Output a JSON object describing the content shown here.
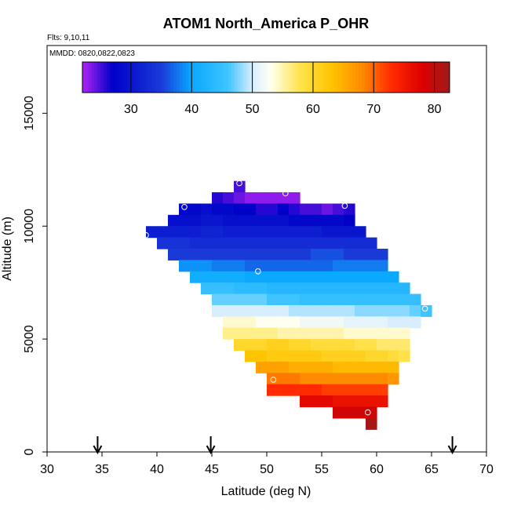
{
  "chart_data": {
    "type": "heatmap",
    "title": "ATOM1 North_America P_OHR",
    "flights_label": "Flts: 9,10,11",
    "dates_label": "MMDD: 0820,0822,0823",
    "xlabel": "Latitude (deg N)",
    "ylabel": "Altitude (m)",
    "xlim": [
      30,
      70
    ],
    "ylim": [
      0,
      18000
    ],
    "x_ticks": [
      30,
      35,
      40,
      45,
      50,
      55,
      60,
      65,
      70
    ],
    "y_ticks": [
      0,
      5000,
      10000,
      15000
    ],
    "colorbar": {
      "range": [
        22,
        82.5
      ],
      "ticks": [
        30,
        40,
        50,
        60,
        70,
        80
      ],
      "stops": [
        {
          "v": 22.5,
          "c": "#a020f0"
        },
        {
          "v": 27,
          "c": "#0000c8"
        },
        {
          "v": 35,
          "c": "#1a3ad8"
        },
        {
          "v": 40,
          "c": "#0aa8ff"
        },
        {
          "v": 46,
          "c": "#3fc4ff"
        },
        {
          "v": 50,
          "c": "#d8eeff"
        },
        {
          "v": 53,
          "c": "#fffff0"
        },
        {
          "v": 58,
          "c": "#ffe24a"
        },
        {
          "v": 63,
          "c": "#ffc400"
        },
        {
          "v": 68,
          "c": "#ff8c00"
        },
        {
          "v": 73,
          "c": "#ff2a00"
        },
        {
          "v": 78,
          "c": "#dd0000"
        },
        {
          "v": 82.5,
          "c": "#a01a1a"
        }
      ]
    },
    "bin_width_deg": 1,
    "bin_height_m": 500,
    "cells": [
      {
        "alt": 11750,
        "lat0": 47,
        "lat1": 48,
        "values": [
          25
        ]
      },
      {
        "alt": 11250,
        "lat0": 45,
        "lat1": 53,
        "values": [
          26,
          25,
          24,
          23,
          23,
          23,
          23,
          23
        ]
      },
      {
        "alt": 10750,
        "lat0": 42,
        "lat1": 58,
        "values": [
          28,
          28,
          29,
          28,
          28,
          27,
          27,
          26,
          26,
          27,
          26,
          25,
          25,
          24,
          25,
          26
        ]
      },
      {
        "alt": 10250,
        "lat0": 41,
        "lat1": 58,
        "values": [
          29,
          29,
          29,
          30,
          30,
          29,
          29,
          29,
          29,
          29,
          29,
          28,
          28,
          28,
          28,
          28,
          27
        ]
      },
      {
        "alt": 9750,
        "lat0": 39,
        "lat1": 59,
        "values": [
          31,
          31,
          31,
          31,
          31,
          32,
          32,
          31,
          31,
          31,
          31,
          31,
          31,
          31,
          31,
          31,
          30,
          30,
          30,
          30
        ]
      },
      {
        "alt": 9250,
        "lat0": 40,
        "lat1": 60,
        "values": [
          34,
          34,
          34,
          33,
          33,
          33,
          33,
          33,
          33,
          33,
          33,
          33,
          33,
          33,
          33,
          33,
          33,
          33,
          33,
          33
        ]
      },
      {
        "alt": 8750,
        "lat0": 41,
        "lat1": 61,
        "values": [
          35,
          35,
          35,
          35,
          35,
          35,
          35,
          35,
          35,
          35,
          35,
          35,
          35,
          36,
          36,
          36,
          35,
          35,
          35,
          35
        ]
      },
      {
        "alt": 8250,
        "lat0": 42,
        "lat1": 61,
        "values": [
          39,
          39,
          39,
          38,
          38,
          38,
          37,
          37,
          37,
          37,
          37,
          37,
          37,
          37,
          38,
          38,
          38,
          38,
          38
        ]
      },
      {
        "alt": 7750,
        "lat0": 43,
        "lat1": 62,
        "values": [
          41,
          41,
          41,
          41,
          41,
          40,
          40,
          40,
          40,
          40,
          40,
          40,
          40,
          40,
          40,
          40,
          40,
          40,
          40
        ]
      },
      {
        "alt": 7250,
        "lat0": 44,
        "lat1": 63,
        "values": [
          45,
          45,
          45,
          44,
          44,
          44,
          43,
          43,
          43,
          43,
          43,
          43,
          43,
          43,
          43,
          43,
          43,
          43,
          43
        ]
      },
      {
        "alt": 6750,
        "lat0": 45,
        "lat1": 64,
        "values": [
          47,
          47,
          47,
          47,
          47,
          46,
          46,
          46,
          45,
          45,
          45,
          45,
          45,
          45,
          45,
          45,
          45,
          45,
          45
        ]
      },
      {
        "alt": 6250,
        "lat0": 45,
        "lat1": 65,
        "values": [
          50,
          50,
          50,
          50,
          50,
          50,
          50,
          49,
          49,
          49,
          49,
          49,
          49,
          48,
          48,
          48,
          48,
          48,
          47,
          46
        ]
      },
      {
        "alt": 5750,
        "lat0": 46,
        "lat1": 64,
        "values": [
          54,
          54,
          54,
          53,
          53,
          53,
          53,
          52,
          52,
          52,
          52,
          51,
          51,
          51,
          51,
          50,
          50,
          50
        ]
      },
      {
        "alt": 5250,
        "lat0": 46,
        "lat1": 63,
        "values": [
          56,
          56,
          56,
          56,
          56,
          55,
          55,
          55,
          55,
          55,
          55,
          54,
          54,
          54,
          54,
          54,
          54
        ]
      },
      {
        "alt": 4750,
        "lat0": 47,
        "lat1": 63,
        "values": [
          60,
          60,
          60,
          61,
          61,
          60,
          60,
          59,
          59,
          59,
          59,
          58,
          58,
          57,
          57,
          57
        ]
      },
      {
        "alt": 4250,
        "lat0": 48,
        "lat1": 63,
        "values": [
          63,
          63,
          62,
          62,
          62,
          62,
          62,
          61,
          61,
          61,
          61,
          60,
          60,
          59,
          58
        ]
      },
      {
        "alt": 3750,
        "lat0": 49,
        "lat1": 62,
        "values": [
          66,
          66,
          66,
          65,
          65,
          65,
          65,
          64,
          64,
          64,
          64,
          64,
          64
        ]
      },
      {
        "alt": 3250,
        "lat0": 50,
        "lat1": 62,
        "values": [
          69,
          69,
          69,
          68,
          68,
          68,
          68,
          68,
          68,
          68,
          68,
          67
        ]
      },
      {
        "alt": 2750,
        "lat0": 50,
        "lat1": 61,
        "values": [
          73,
          73,
          73,
          73,
          73,
          72,
          72,
          72,
          72,
          72,
          72
        ]
      },
      {
        "alt": 2250,
        "lat0": 53,
        "lat1": 61,
        "values": [
          77,
          77,
          77,
          76,
          76,
          76,
          76,
          76
        ]
      },
      {
        "alt": 1750,
        "lat0": 56,
        "lat1": 60,
        "values": [
          79,
          79,
          79,
          79
        ]
      },
      {
        "alt": 1250,
        "lat0": 59,
        "lat1": 60,
        "values": [
          82
        ]
      }
    ],
    "points": [
      {
        "lat": 47.5,
        "alt": 11900
      },
      {
        "lat": 51.7,
        "alt": 11450
      },
      {
        "lat": 42.5,
        "alt": 10850
      },
      {
        "lat": 57.1,
        "alt": 10900
      },
      {
        "lat": 39.0,
        "alt": 9600
      },
      {
        "lat": 49.2,
        "alt": 8000
      },
      {
        "lat": 64.4,
        "alt": 6350
      },
      {
        "lat": 50.6,
        "alt": 3200
      },
      {
        "lat": 59.2,
        "alt": 1750
      }
    ],
    "arrows_lat": [
      34.6,
      44.9,
      66.9
    ]
  }
}
